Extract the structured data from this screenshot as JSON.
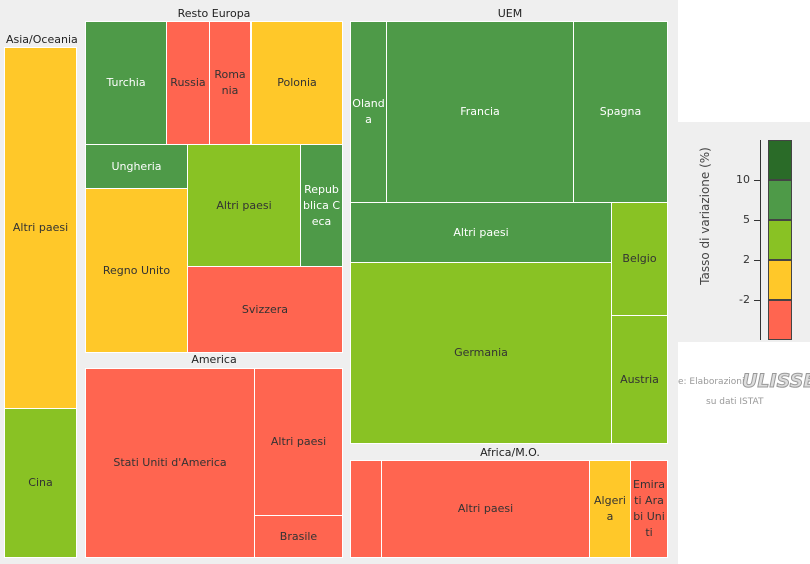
{
  "chart_data": {
    "type": "treemap",
    "color_metric": "Tasso di variazione (%)",
    "groups": [
      {
        "name": "Asia/Oceania",
        "items": [
          {
            "label": "Altri paesi",
            "color": "#ffc829"
          },
          {
            "label": "Cina",
            "color": "#89c224"
          }
        ]
      },
      {
        "name": "Resto Europa",
        "items": [
          {
            "label": "Turchia",
            "color": "#4e9a48"
          },
          {
            "label": "Russia",
            "color": "#ff6550"
          },
          {
            "label": "Romania",
            "color": "#ff6550"
          },
          {
            "label": "Polonia",
            "color": "#ffc829"
          },
          {
            "label": "Ungheria",
            "color": "#4e9a48"
          },
          {
            "label": "Altri paesi",
            "color": "#89c224"
          },
          {
            "label": "Repubblica Ceca",
            "color": "#4e9a48"
          },
          {
            "label": "Regno Unito",
            "color": "#ffc829"
          },
          {
            "label": "Svizzera",
            "color": "#ff6550"
          }
        ]
      },
      {
        "name": "America",
        "items": [
          {
            "label": "Stati Uniti d'America",
            "color": "#ff6550"
          },
          {
            "label": "Altri paesi",
            "color": "#ff6550"
          },
          {
            "label": "Brasile",
            "color": "#ff6550"
          }
        ]
      },
      {
        "name": "UEM",
        "items": [
          {
            "label": "Olanda",
            "color": "#4e9a48"
          },
          {
            "label": "Francia",
            "color": "#4e9a48"
          },
          {
            "label": "Spagna",
            "color": "#4e9a48"
          },
          {
            "label": "Altri paesi",
            "color": "#4e9a48"
          },
          {
            "label": "Germania",
            "color": "#89c224"
          },
          {
            "label": "Belgio",
            "color": "#89c224"
          },
          {
            "label": "Austria",
            "color": "#89c224"
          }
        ]
      },
      {
        "name": "Africa/M.O.",
        "items": [
          {
            "label": "",
            "color": "#ff6550"
          },
          {
            "label": "Altri paesi",
            "color": "#ff6550"
          },
          {
            "label": "Algeria",
            "color": "#ffc829"
          },
          {
            "label": "Emirati Arabi Uniti",
            "color": "#ff6550"
          }
        ]
      }
    ],
    "legend": {
      "title": "Tasso di variazione (%)",
      "ticks": [
        "10",
        "5",
        "2",
        "-2"
      ],
      "swatches": [
        "#2a6b28",
        "#4e9a48",
        "#89c224",
        "#ffc829",
        "#ff6550"
      ]
    }
  },
  "source": {
    "line1": "e: Elaborazioni",
    "logo": "ULISSE",
    "line2": "su dati ISTAT"
  }
}
